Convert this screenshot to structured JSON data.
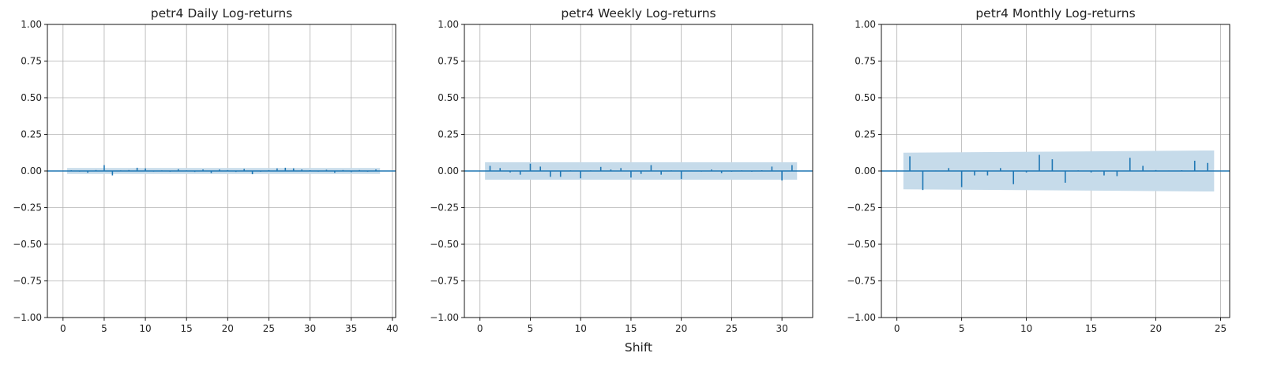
{
  "figure": {
    "xlabel": "Shift"
  },
  "colors": {
    "stem": "#1f77b4",
    "band": "#c6dbea",
    "grid": "#b0b0b0",
    "axis": "#000000"
  },
  "chart_data": [
    {
      "type": "bar",
      "title": "petr4 Daily Log-returns",
      "xlim": [
        -1.9,
        40.4
      ],
      "ylim": [
        -1,
        1
      ],
      "xticks": [
        0,
        5,
        10,
        15,
        20,
        25,
        30,
        35,
        40
      ],
      "yticks": [
        1.0,
        0.75,
        0.5,
        0.25,
        0.0,
        -0.25,
        -0.5,
        -0.75,
        -1.0
      ],
      "ytick_labels": [
        "1.00",
        "0.75",
        "0.50",
        "0.25",
        "0.00",
        "−0.25",
        "−0.50",
        "−0.75",
        "−1.00"
      ],
      "grid": true,
      "x": [
        1,
        2,
        3,
        4,
        5,
        6,
        7,
        8,
        9,
        10,
        11,
        12,
        13,
        14,
        15,
        16,
        17,
        18,
        19,
        20,
        21,
        22,
        23,
        24,
        25,
        26,
        27,
        28,
        29,
        30,
        31,
        32,
        33,
        34,
        35,
        36,
        37,
        38
      ],
      "values": [
        0.005,
        -0.004,
        -0.012,
        0.006,
        0.04,
        -0.03,
        0.004,
        0.006,
        0.022,
        0.018,
        -0.004,
        0.004,
        -0.005,
        0.012,
        0.004,
        -0.006,
        0.01,
        -0.014,
        0.01,
        0.006,
        -0.006,
        0.014,
        -0.022,
        -0.005,
        0.006,
        0.018,
        0.022,
        0.018,
        0.01,
        0.005,
        -0.004,
        0.008,
        -0.012,
        0.006,
        -0.008,
        0.006,
        -0.005,
        0.01
      ],
      "confidence_band": {
        "x_start": 0.5,
        "x_end": 38.5,
        "lower": [
          -0.02
        ],
        "upper": [
          0.02
        ]
      }
    },
    {
      "type": "bar",
      "title": "petr4 Weekly Log-returns",
      "xlim": [
        -1.55,
        33.05
      ],
      "ylim": [
        -1,
        1
      ],
      "xticks": [
        0,
        5,
        10,
        15,
        20,
        25,
        30
      ],
      "yticks": [
        1.0,
        0.75,
        0.5,
        0.25,
        0.0,
        -0.25,
        -0.5,
        -0.75,
        -1.0
      ],
      "ytick_labels": [
        "1.00",
        "0.75",
        "0.50",
        "0.25",
        "0.00",
        "−0.25",
        "−0.50",
        "−0.75",
        "−1.00"
      ],
      "grid": true,
      "x": [
        1,
        2,
        3,
        4,
        5,
        6,
        7,
        8,
        9,
        10,
        11,
        12,
        13,
        14,
        15,
        16,
        17,
        18,
        19,
        20,
        21,
        22,
        23,
        24,
        25,
        26,
        27,
        28,
        29,
        30,
        31
      ],
      "values": [
        0.035,
        0.02,
        -0.01,
        -0.025,
        0.05,
        0.03,
        -0.04,
        -0.04,
        0.004,
        -0.05,
        0.004,
        0.028,
        0.01,
        0.02,
        -0.045,
        -0.02,
        0.04,
        -0.025,
        0.004,
        -0.055,
        0.003,
        -0.004,
        0.01,
        -0.015,
        -0.005,
        0.004,
        -0.005,
        0.005,
        0.03,
        -0.065,
        0.04
      ],
      "confidence_band": {
        "x_start": 0.5,
        "x_end": 31.5,
        "lower": [
          -0.06
        ],
        "upper": [
          0.06
        ]
      }
    },
    {
      "type": "bar",
      "title": "petr4 Monthly Log-returns",
      "xlim": [
        -1.2,
        25.7
      ],
      "ylim": [
        -1,
        1
      ],
      "xticks": [
        0,
        5,
        10,
        15,
        20,
        25
      ],
      "yticks": [
        1.0,
        0.75,
        0.5,
        0.25,
        0.0,
        -0.25,
        -0.5,
        -0.75,
        -1.0
      ],
      "ytick_labels": [
        "1.00",
        "0.75",
        "0.50",
        "0.25",
        "0.00",
        "−0.25",
        "−0.50",
        "−0.75",
        "−1.00"
      ],
      "grid": true,
      "x": [
        1,
        2,
        3,
        4,
        5,
        6,
        7,
        8,
        9,
        10,
        11,
        12,
        13,
        14,
        15,
        16,
        17,
        18,
        19,
        20,
        21,
        22,
        23,
        24
      ],
      "values": [
        0.1,
        -0.13,
        0.003,
        0.02,
        -0.11,
        -0.03,
        -0.03,
        0.02,
        -0.09,
        -0.01,
        0.11,
        0.08,
        -0.08,
        0.004,
        -0.01,
        -0.03,
        -0.035,
        0.09,
        0.035,
        0.006,
        0.003,
        0.005,
        0.07,
        0.055
      ],
      "confidence_band": {
        "x_start": 0.5,
        "x_end": 24.5,
        "lower": [
          -0.125,
          -0.14
        ],
        "upper": [
          0.125,
          0.14
        ]
      }
    }
  ]
}
